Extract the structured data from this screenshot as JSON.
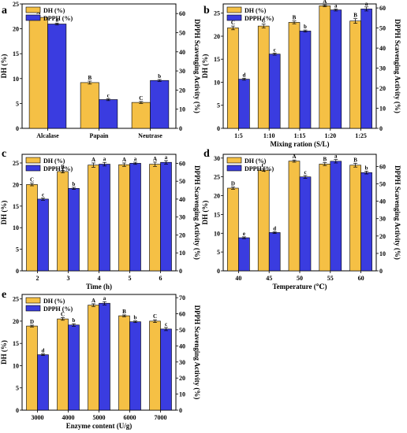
{
  "colors": {
    "dh": "#f5c045",
    "dpph": "#3a3ce0",
    "axis": "#000000"
  },
  "chart_data": [
    {
      "panel": "a",
      "type": "bar",
      "categories": [
        "Alcalase",
        "Papain",
        "Neutrase"
      ],
      "xlabel": "",
      "ylabel": "DH (%)",
      "y2label": "DPPH  Scavenging Activity (%)",
      "ylim": [
        0,
        25
      ],
      "yticks": [
        0,
        5,
        10,
        15,
        20,
        25
      ],
      "y2lim": [
        0,
        65
      ],
      "y2ticks": [
        0,
        10,
        20,
        30,
        40,
        50,
        60
      ],
      "legend": {
        "placement": "top-left",
        "entries": [
          "DH (%)",
          "DPPH (%)"
        ]
      },
      "series": [
        {
          "name": "DH (%)",
          "axis": "left",
          "values": [
            22.3,
            9.2,
            5.2
          ],
          "errors": [
            0.3,
            0.3,
            0.2
          ],
          "letters": [
            "A",
            "B",
            "C"
          ]
        },
        {
          "name": "DPPH (%)",
          "axis": "right",
          "values": [
            54.5,
            15.0,
            25.0
          ],
          "errors": [
            0.5,
            0.5,
            0.5
          ],
          "letters": [
            "a",
            "c",
            "b"
          ]
        }
      ]
    },
    {
      "panel": "b",
      "type": "bar",
      "categories": [
        "1:5",
        "1:10",
        "1:15",
        "1:20",
        "1:25"
      ],
      "xlabel": "Mixing ration  (S/L)",
      "ylabel": "DH (%)",
      "y2label": "DPPH  Scavenging Activity (%)",
      "ylim": [
        0,
        27
      ],
      "yticks": [
        0,
        5,
        10,
        15,
        20,
        25
      ],
      "y2lim": [
        0,
        62
      ],
      "y2ticks": [
        0,
        10,
        20,
        30,
        40,
        50,
        60
      ],
      "legend": {
        "placement": "top-left",
        "entries": [
          "DH (%)",
          "DPPH (%)"
        ]
      },
      "series": [
        {
          "name": "DH (%)",
          "axis": "left",
          "values": [
            21.8,
            22.2,
            23.0,
            26.6,
            23.3
          ],
          "errors": [
            0.4,
            0.4,
            0.3,
            0.2,
            0.5
          ],
          "letters": [
            "C",
            "C",
            "B",
            "A",
            "B"
          ]
        },
        {
          "name": "DPPH (%)",
          "axis": "right",
          "values": [
            24.5,
            37.0,
            48.5,
            59.0,
            59.5
          ],
          "errors": [
            0.5,
            0.5,
            0.5,
            0.5,
            1.0
          ],
          "letters": [
            "d",
            "c",
            "b",
            "a",
            "a"
          ]
        }
      ]
    },
    {
      "panel": "c",
      "type": "bar",
      "categories": [
        "2",
        "3",
        "4",
        "5",
        "6"
      ],
      "xlabel": "Time (h)",
      "ylabel": "DH (%)",
      "y2label": "DPPH  Scavenging Activity (%)",
      "ylim": [
        0,
        27
      ],
      "yticks": [
        0,
        5,
        10,
        15,
        20,
        25
      ],
      "y2lim": [
        0,
        65
      ],
      "y2ticks": [
        0,
        10,
        20,
        30,
        40,
        50,
        60
      ],
      "legend": {
        "placement": "top-left",
        "entries": [
          "DH (%)",
          "DPPH (%)"
        ]
      },
      "series": [
        {
          "name": "DH (%)",
          "axis": "left",
          "values": [
            20.0,
            23.0,
            24.5,
            24.6,
            24.7
          ],
          "errors": [
            0.3,
            0.3,
            0.5,
            0.4,
            0.5
          ],
          "letters": [
            "C",
            "B",
            "A",
            "A",
            "A"
          ]
        },
        {
          "name": "DPPH (%)",
          "axis": "right",
          "values": [
            40.0,
            46.0,
            59.5,
            60.0,
            60.5
          ],
          "errors": [
            0.6,
            0.6,
            1.0,
            0.6,
            1.0
          ],
          "letters": [
            "c",
            "b",
            "a",
            "a",
            "a"
          ]
        }
      ]
    },
    {
      "panel": "d",
      "type": "bar",
      "categories": [
        "40",
        "45",
        "50",
        "55",
        "60"
      ],
      "xlabel": "Temperature (℃)",
      "ylabel": "DH (%)",
      "y2label": "DPPH  Scavenging Activity (%)",
      "ylim": [
        0,
        31
      ],
      "yticks": [
        0,
        5,
        10,
        15,
        20,
        25,
        30
      ],
      "y2lim": [
        0,
        67
      ],
      "y2ticks": [
        0,
        10,
        20,
        30,
        40,
        50,
        60
      ],
      "legend": {
        "placement": "top-left",
        "entries": [
          "DH (%)",
          "DPPH (%)"
        ]
      },
      "series": [
        {
          "name": "DH (%)",
          "axis": "left",
          "values": [
            22.0,
            26.8,
            29.2,
            28.4,
            28.1
          ],
          "errors": [
            0.3,
            0.3,
            0.3,
            0.4,
            0.5
          ],
          "letters": [
            "D",
            "C",
            "A",
            "B",
            "B"
          ]
        },
        {
          "name": "DPPH (%)",
          "axis": "right",
          "values": [
            19.0,
            22.0,
            54.0,
            63.0,
            56.5
          ],
          "errors": [
            0.5,
            0.5,
            0.8,
            1.0,
            0.8
          ],
          "letters": [
            "e",
            "d",
            "c",
            "a",
            "b"
          ]
        }
      ]
    },
    {
      "panel": "e",
      "type": "bar",
      "categories": [
        "3000",
        "4000",
        "5000",
        "6000",
        "7000"
      ],
      "xlabel": "Enzyme content (U/g)",
      "ylabel": "DH (%)",
      "y2label": "DPPH  Scavenging Activity (%)",
      "ylim": [
        0,
        26
      ],
      "yticks": [
        0,
        5,
        10,
        15,
        20,
        25
      ],
      "y2lim": [
        0,
        72
      ],
      "y2ticks": [
        0,
        10,
        20,
        30,
        40,
        50,
        60,
        70
      ],
      "legend": {
        "placement": "top-left",
        "entries": [
          "DH (%)",
          "DPPH (%)"
        ]
      },
      "series": [
        {
          "name": "DH (%)",
          "axis": "left",
          "values": [
            18.9,
            20.5,
            23.6,
            21.2,
            20.0
          ],
          "errors": [
            0.2,
            0.3,
            0.3,
            0.2,
            0.3
          ],
          "letters": [
            "D",
            "C",
            "A",
            "B",
            "C"
          ]
        },
        {
          "name": "DPPH (%)",
          "axis": "right",
          "values": [
            34.5,
            53.0,
            66.5,
            55.0,
            50.5
          ],
          "errors": [
            0.5,
            0.8,
            1.0,
            0.5,
            1.0
          ],
          "letters": [
            "d",
            "b",
            "a",
            "b",
            "c"
          ]
        }
      ]
    }
  ]
}
